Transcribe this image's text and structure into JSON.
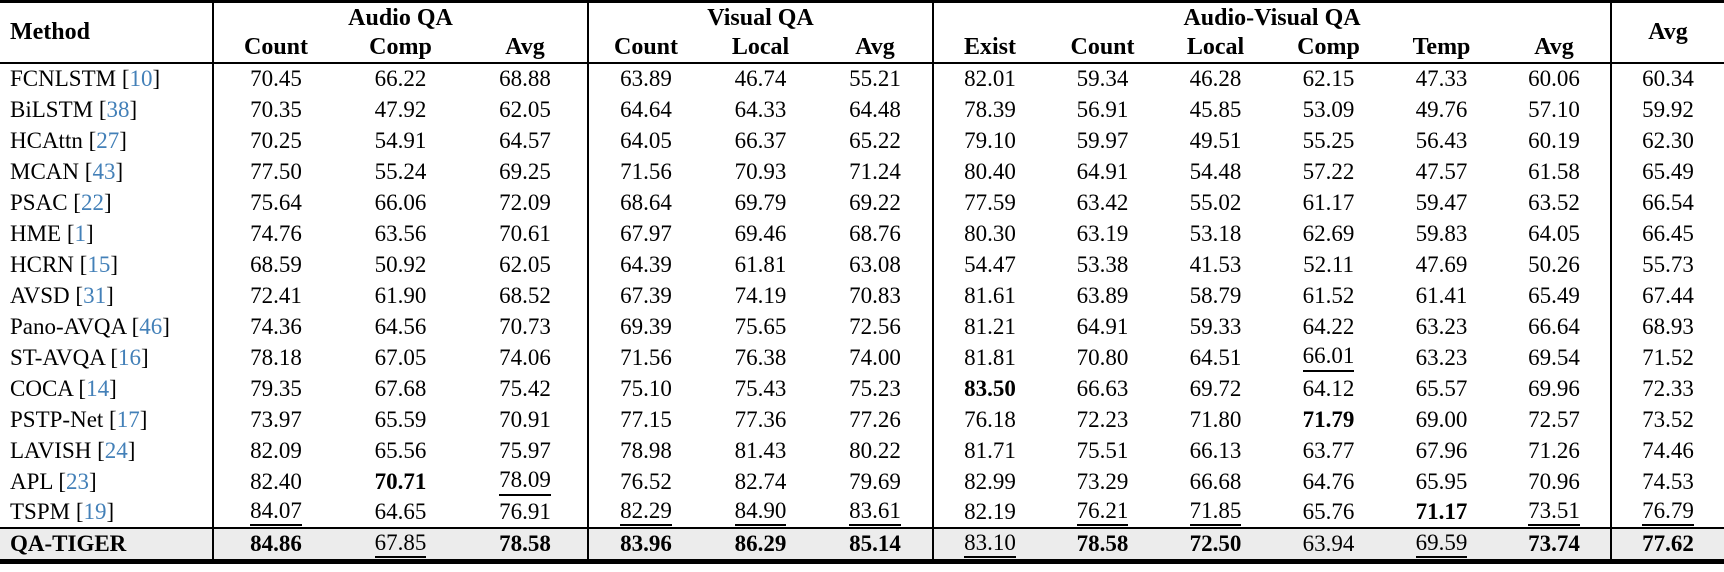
{
  "colors": {
    "citation_blue": "#4380b8",
    "highlight_row_bg": "#ececec",
    "rule_black": "#000000"
  },
  "table": {
    "citation_open": "[",
    "citation_close": "]",
    "header": {
      "method_label": "Method",
      "avg_label": "Avg",
      "groups": [
        {
          "label": "Audio QA",
          "subcols": [
            "Count",
            "Comp",
            "Avg"
          ]
        },
        {
          "label": "Visual QA",
          "subcols": [
            "Count",
            "Local",
            "Avg"
          ]
        },
        {
          "label": "Audio-Visual QA",
          "subcols": [
            "Exist",
            "Count",
            "Local",
            "Comp",
            "Temp",
            "Avg"
          ]
        }
      ]
    },
    "rows": [
      {
        "method": "FCNLSTM",
        "citation": "10",
        "highlight": false,
        "values": [
          "70.45",
          "66.22",
          "68.88",
          "63.89",
          "46.74",
          "55.21",
          "82.01",
          "59.34",
          "46.28",
          "62.15",
          "47.33",
          "60.06",
          "60.34"
        ],
        "bold": [],
        "underline": []
      },
      {
        "method": "BiLSTM",
        "citation": "38",
        "highlight": false,
        "values": [
          "70.35",
          "47.92",
          "62.05",
          "64.64",
          "64.33",
          "64.48",
          "78.39",
          "56.91",
          "45.85",
          "53.09",
          "49.76",
          "57.10",
          "59.92"
        ],
        "bold": [],
        "underline": []
      },
      {
        "method": "HCAttn",
        "citation": "27",
        "highlight": false,
        "values": [
          "70.25",
          "54.91",
          "64.57",
          "64.05",
          "66.37",
          "65.22",
          "79.10",
          "59.97",
          "49.51",
          "55.25",
          "56.43",
          "60.19",
          "62.30"
        ],
        "bold": [],
        "underline": []
      },
      {
        "method": "MCAN",
        "citation": "43",
        "highlight": false,
        "values": [
          "77.50",
          "55.24",
          "69.25",
          "71.56",
          "70.93",
          "71.24",
          "80.40",
          "64.91",
          "54.48",
          "57.22",
          "47.57",
          "61.58",
          "65.49"
        ],
        "bold": [],
        "underline": []
      },
      {
        "method": "PSAC",
        "citation": "22",
        "highlight": false,
        "values": [
          "75.64",
          "66.06",
          "72.09",
          "68.64",
          "69.79",
          "69.22",
          "77.59",
          "63.42",
          "55.02",
          "61.17",
          "59.47",
          "63.52",
          "66.54"
        ],
        "bold": [],
        "underline": []
      },
      {
        "method": "HME",
        "citation": "1",
        "highlight": false,
        "values": [
          "74.76",
          "63.56",
          "70.61",
          "67.97",
          "69.46",
          "68.76",
          "80.30",
          "63.19",
          "53.18",
          "62.69",
          "59.83",
          "64.05",
          "66.45"
        ],
        "bold": [],
        "underline": []
      },
      {
        "method": "HCRN",
        "citation": "15",
        "highlight": false,
        "values": [
          "68.59",
          "50.92",
          "62.05",
          "64.39",
          "61.81",
          "63.08",
          "54.47",
          "53.38",
          "41.53",
          "52.11",
          "47.69",
          "50.26",
          "55.73"
        ],
        "bold": [],
        "underline": []
      },
      {
        "method": "AVSD",
        "citation": "31",
        "highlight": false,
        "values": [
          "72.41",
          "61.90",
          "68.52",
          "67.39",
          "74.19",
          "70.83",
          "81.61",
          "63.89",
          "58.79",
          "61.52",
          "61.41",
          "65.49",
          "67.44"
        ],
        "bold": [],
        "underline": []
      },
      {
        "method": "Pano-AVQA",
        "citation": "46",
        "highlight": false,
        "values": [
          "74.36",
          "64.56",
          "70.73",
          "69.39",
          "75.65",
          "72.56",
          "81.21",
          "64.91",
          "59.33",
          "64.22",
          "63.23",
          "66.64",
          "68.93"
        ],
        "bold": [],
        "underline": []
      },
      {
        "method": "ST-AVQA",
        "citation": "16",
        "highlight": false,
        "values": [
          "78.18",
          "67.05",
          "74.06",
          "71.56",
          "76.38",
          "74.00",
          "81.81",
          "70.80",
          "64.51",
          "66.01",
          "63.23",
          "69.54",
          "71.52"
        ],
        "bold": [],
        "underline": [
          9
        ]
      },
      {
        "method": "COCA",
        "citation": "14",
        "highlight": false,
        "values": [
          "79.35",
          "67.68",
          "75.42",
          "75.10",
          "75.43",
          "75.23",
          "83.50",
          "66.63",
          "69.72",
          "64.12",
          "65.57",
          "69.96",
          "72.33"
        ],
        "bold": [
          6
        ],
        "underline": []
      },
      {
        "method": "PSTP-Net",
        "citation": "17",
        "highlight": false,
        "values": [
          "73.97",
          "65.59",
          "70.91",
          "77.15",
          "77.36",
          "77.26",
          "76.18",
          "72.23",
          "71.80",
          "71.79",
          "69.00",
          "72.57",
          "73.52"
        ],
        "bold": [
          9
        ],
        "underline": []
      },
      {
        "method": "LAVISH",
        "citation": "24",
        "highlight": false,
        "values": [
          "82.09",
          "65.56",
          "75.97",
          "78.98",
          "81.43",
          "80.22",
          "81.71",
          "75.51",
          "66.13",
          "63.77",
          "67.96",
          "71.26",
          "74.46"
        ],
        "bold": [],
        "underline": []
      },
      {
        "method": "APL",
        "citation": "23",
        "highlight": false,
        "values": [
          "82.40",
          "70.71",
          "78.09",
          "76.52",
          "82.74",
          "79.69",
          "82.99",
          "73.29",
          "66.68",
          "64.76",
          "65.95",
          "70.96",
          "74.53"
        ],
        "bold": [
          1
        ],
        "underline": [
          2
        ]
      },
      {
        "method": "TSPM",
        "citation": "19",
        "highlight": false,
        "values": [
          "84.07",
          "64.65",
          "76.91",
          "82.29",
          "84.90",
          "83.61",
          "82.19",
          "76.21",
          "71.85",
          "65.76",
          "71.17",
          "73.51",
          "76.79"
        ],
        "bold": [
          10
        ],
        "underline": [
          0,
          3,
          4,
          5,
          7,
          8,
          11,
          12
        ]
      },
      {
        "method": "QA-TIGER",
        "citation": "",
        "highlight": true,
        "values": [
          "84.86",
          "67.85",
          "78.58",
          "83.96",
          "86.29",
          "85.14",
          "83.10",
          "78.58",
          "72.50",
          "63.94",
          "69.59",
          "73.74",
          "77.62"
        ],
        "bold": [
          0,
          2,
          3,
          4,
          5,
          7,
          8,
          11,
          12
        ],
        "underline": [
          1,
          6,
          10
        ]
      }
    ]
  }
}
